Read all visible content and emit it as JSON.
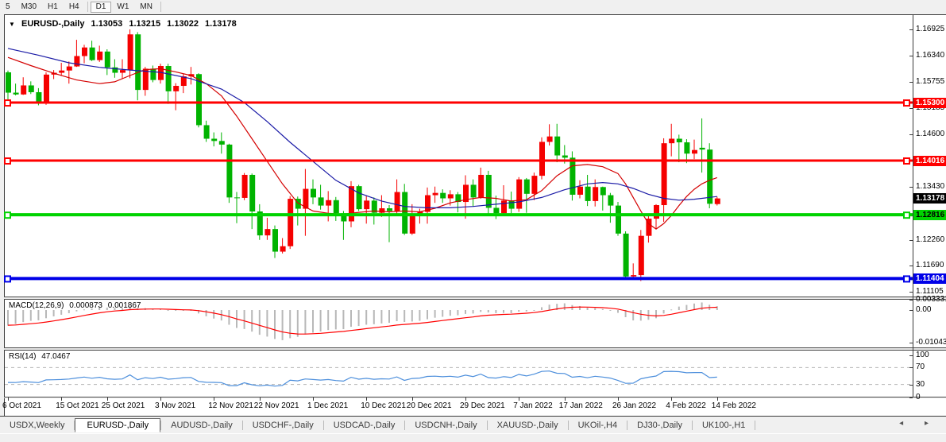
{
  "icons": {
    "collapse": "▼",
    "tab_scroll_left": "◂",
    "tab_scroll_right": "▸"
  },
  "toolbar": {
    "groups": [
      [
        "5",
        "M30",
        "H1",
        "H4"
      ],
      [
        "D1",
        "W1",
        "MN"
      ]
    ],
    "active": "D1"
  },
  "chart_header": {
    "symbol": "EURUSD-,Daily",
    "open": "1.13053",
    "high": "1.13215",
    "low": "1.13022",
    "close": "1.13178"
  },
  "chart_data": {
    "type": "candlestick",
    "symbol": "EURUSD-",
    "timeframe": "Daily",
    "visible_range": {
      "from": "6 Oct 2021",
      "to": "14 Feb 2022"
    },
    "y_axis": {
      "min": 1.11105,
      "max": 1.16925,
      "tick_labels": [
        "1.16925",
        "1.16340",
        "1.15755",
        "1.15185",
        "1.14600",
        "1.13430",
        "1.12260",
        "1.11690",
        "1.11105"
      ],
      "tick_values": [
        1.16925,
        1.1634,
        1.15755,
        1.15185,
        1.146,
        1.1343,
        1.1226,
        1.1169,
        1.11105
      ]
    },
    "x_axis": [
      {
        "i": 0,
        "label": "6 Oct 2021"
      },
      {
        "i": 7,
        "label": "15 Oct 2021"
      },
      {
        "i": 13,
        "label": "25 Oct 2021"
      },
      {
        "i": 20,
        "label": "3 Nov 2021"
      },
      {
        "i": 27,
        "label": "12 Nov 2021"
      },
      {
        "i": 33,
        "label": "22 Nov 2021"
      },
      {
        "i": 40,
        "label": "1 Dec 2021"
      },
      {
        "i": 47,
        "label": "10 Dec 2021"
      },
      {
        "i": 53,
        "label": "20 Dec 2021"
      },
      {
        "i": 60,
        "label": "29 Dec 2021"
      },
      {
        "i": 67,
        "label": "7 Jan 2022"
      },
      {
        "i": 73,
        "label": "17 Jan 2022"
      },
      {
        "i": 80,
        "label": "26 Jan 2022"
      },
      {
        "i": 87,
        "label": "4 Feb 2022"
      },
      {
        "i": 93,
        "label": "14 Feb 2022"
      }
    ],
    "candles": [
      [
        1.1597,
        1.1601,
        1.1529,
        1.1552
      ],
      [
        1.1552,
        1.1572,
        1.1546,
        1.1548
      ],
      [
        1.1548,
        1.1586,
        1.1547,
        1.1568
      ],
      [
        1.1568,
        1.1577,
        1.1549,
        1.1553
      ],
      [
        1.1553,
        1.1562,
        1.1524,
        1.153
      ],
      [
        1.153,
        1.1597,
        1.1525,
        1.1592
      ],
      [
        1.1592,
        1.1602,
        1.1582,
        1.1596
      ],
      [
        1.1596,
        1.1618,
        1.1589,
        1.1601
      ],
      [
        1.1601,
        1.1621,
        1.1572,
        1.161
      ],
      [
        1.161,
        1.1669,
        1.1609,
        1.1633
      ],
      [
        1.1633,
        1.1658,
        1.1617,
        1.1652
      ],
      [
        1.1652,
        1.1667,
        1.1622,
        1.1624
      ],
      [
        1.1624,
        1.1656,
        1.162,
        1.1643
      ],
      [
        1.1643,
        1.1648,
        1.1591,
        1.1608
      ],
      [
        1.1608,
        1.1626,
        1.1585,
        1.1596
      ],
      [
        1.1596,
        1.1626,
        1.1583,
        1.1602
      ],
      [
        1.1602,
        1.1692,
        1.1584,
        1.1681
      ],
      [
        1.1681,
        1.1686,
        1.1535,
        1.1558
      ],
      [
        1.1558,
        1.1609,
        1.1545,
        1.1605
      ],
      [
        1.1605,
        1.1612,
        1.1575,
        1.158
      ],
      [
        1.158,
        1.1616,
        1.1572,
        1.1611
      ],
      [
        1.1611,
        1.1616,
        1.1527,
        1.1555
      ],
      [
        1.1555,
        1.1573,
        1.1513,
        1.1567
      ],
      [
        1.1567,
        1.1594,
        1.1551,
        1.1588
      ],
      [
        1.1588,
        1.1609,
        1.157,
        1.1593
      ],
      [
        1.1593,
        1.1595,
        1.1475,
        1.148
      ],
      [
        1.148,
        1.149,
        1.1443,
        1.145
      ],
      [
        1.145,
        1.1464,
        1.1433,
        1.1445
      ],
      [
        1.1445,
        1.1464,
        1.1417,
        1.1437
      ],
      [
        1.1437,
        1.1439,
        1.1308,
        1.132
      ],
      [
        1.132,
        1.1332,
        1.1263,
        1.1319
      ],
      [
        1.1319,
        1.1374,
        1.1314,
        1.137
      ],
      [
        1.137,
        1.1373,
        1.125,
        1.1289
      ],
      [
        1.1289,
        1.1305,
        1.1226,
        1.1236
      ],
      [
        1.1236,
        1.1275,
        1.1226,
        1.125
      ],
      [
        1.125,
        1.1258,
        1.1186,
        1.12
      ],
      [
        1.12,
        1.123,
        1.1196,
        1.1212
      ],
      [
        1.1212,
        1.1323,
        1.1206,
        1.1317
      ],
      [
        1.1317,
        1.1322,
        1.1258,
        1.1295
      ],
      [
        1.1295,
        1.1383,
        1.1235,
        1.1339
      ],
      [
        1.1339,
        1.136,
        1.1305,
        1.132
      ],
      [
        1.132,
        1.1348,
        1.1293,
        1.1302
      ],
      [
        1.1302,
        1.1334,
        1.1267,
        1.1314
      ],
      [
        1.1314,
        1.1321,
        1.1268,
        1.1285
      ],
      [
        1.1285,
        1.129,
        1.1226,
        1.1267
      ],
      [
        1.1267,
        1.1356,
        1.1254,
        1.1345
      ],
      [
        1.1345,
        1.1348,
        1.129,
        1.1294
      ],
      [
        1.1294,
        1.1324,
        1.1262,
        1.1313
      ],
      [
        1.1313,
        1.132,
        1.126,
        1.1286
      ],
      [
        1.1286,
        1.1325,
        1.1277,
        1.1296
      ],
      [
        1.1296,
        1.1303,
        1.1221,
        1.129
      ],
      [
        1.129,
        1.136,
        1.128,
        1.1332
      ],
      [
        1.1332,
        1.135,
        1.1237,
        1.124
      ],
      [
        1.124,
        1.1305,
        1.1237,
        1.128
      ],
      [
        1.128,
        1.1295,
        1.1262,
        1.1288
      ],
      [
        1.1288,
        1.1342,
        1.1262,
        1.1325
      ],
      [
        1.1325,
        1.1344,
        1.1308,
        1.133
      ],
      [
        1.133,
        1.1338,
        1.1308,
        1.1318
      ],
      [
        1.1318,
        1.1336,
        1.1302,
        1.1327
      ],
      [
        1.1327,
        1.1332,
        1.1287,
        1.131
      ],
      [
        1.131,
        1.1369,
        1.1273,
        1.1348
      ],
      [
        1.1348,
        1.136,
        1.13,
        1.132
      ],
      [
        1.132,
        1.1386,
        1.1317,
        1.137
      ],
      [
        1.137,
        1.1379,
        1.1279,
        1.1297
      ],
      [
        1.1297,
        1.1324,
        1.1272,
        1.1285
      ],
      [
        1.1285,
        1.1347,
        1.128,
        1.1313
      ],
      [
        1.1313,
        1.1333,
        1.1285,
        1.1295
      ],
      [
        1.1295,
        1.1365,
        1.1288,
        1.136
      ],
      [
        1.136,
        1.1363,
        1.1286,
        1.1328
      ],
      [
        1.1328,
        1.1375,
        1.1314,
        1.1368
      ],
      [
        1.1368,
        1.1453,
        1.136,
        1.1443
      ],
      [
        1.1443,
        1.1482,
        1.1435,
        1.1455
      ],
      [
        1.1455,
        1.1483,
        1.1398,
        1.1413
      ],
      [
        1.1413,
        1.1436,
        1.1395,
        1.1408
      ],
      [
        1.1408,
        1.1422,
        1.1313,
        1.1326
      ],
      [
        1.1326,
        1.1358,
        1.1318,
        1.1344
      ],
      [
        1.1344,
        1.137,
        1.1301,
        1.1312
      ],
      [
        1.1312,
        1.136,
        1.13,
        1.1343
      ],
      [
        1.1343,
        1.1344,
        1.1291,
        1.1325
      ],
      [
        1.1325,
        1.133,
        1.1264,
        1.1302
      ],
      [
        1.1302,
        1.131,
        1.1235,
        1.124
      ],
      [
        1.124,
        1.1245,
        1.1142,
        1.1145
      ],
      [
        1.1145,
        1.1174,
        1.114,
        1.1148
      ],
      [
        1.1148,
        1.1248,
        1.1135,
        1.1235
      ],
      [
        1.1235,
        1.1279,
        1.122,
        1.1273
      ],
      [
        1.1273,
        1.1305,
        1.1251,
        1.1303
      ],
      [
        1.1303,
        1.1451,
        1.1266,
        1.144
      ],
      [
        1.144,
        1.1483,
        1.1411,
        1.145
      ],
      [
        1.145,
        1.1459,
        1.1398,
        1.1442
      ],
      [
        1.1442,
        1.1449,
        1.1396,
        1.1417
      ],
      [
        1.1417,
        1.1448,
        1.1405,
        1.1425
      ],
      [
        1.143,
        1.1495,
        1.1375,
        1.1426
      ],
      [
        1.1426,
        1.144,
        1.1296,
        1.1306
      ],
      [
        1.13053,
        1.13215,
        1.13022,
        1.13178
      ]
    ],
    "overlays": {
      "ma_slow_blue": [
        [
          0,
          1.165
        ],
        [
          4,
          1.1635
        ],
        [
          8,
          1.1618
        ],
        [
          12,
          1.1608
        ],
        [
          16,
          1.1602
        ],
        [
          20,
          1.1597
        ],
        [
          24,
          1.1583
        ],
        [
          28,
          1.156
        ],
        [
          31,
          1.153
        ],
        [
          34,
          1.1488
        ],
        [
          37,
          1.1442
        ],
        [
          40,
          1.14
        ],
        [
          43,
          1.1358
        ],
        [
          46,
          1.133
        ],
        [
          49,
          1.1312
        ],
        [
          52,
          1.13
        ],
        [
          55,
          1.1297
        ],
        [
          58,
          1.1297
        ],
        [
          61,
          1.13
        ],
        [
          64,
          1.1305
        ],
        [
          67,
          1.131
        ],
        [
          70,
          1.132
        ],
        [
          73,
          1.1337
        ],
        [
          76,
          1.135
        ],
        [
          78,
          1.1353
        ],
        [
          80,
          1.135
        ],
        [
          82,
          1.134
        ],
        [
          84,
          1.1327
        ],
        [
          86,
          1.1318
        ],
        [
          88,
          1.1314
        ],
        [
          90,
          1.1316
        ],
        [
          93,
          1.1322
        ]
      ],
      "ma_fast_red": [
        [
          0,
          1.163
        ],
        [
          3,
          1.1612
        ],
        [
          6,
          1.1595
        ],
        [
          9,
          1.158
        ],
        [
          12,
          1.1572
        ],
        [
          14,
          1.1576
        ],
        [
          16,
          1.159
        ],
        [
          18,
          1.1603
        ],
        [
          20,
          1.1605
        ],
        [
          22,
          1.1598
        ],
        [
          24,
          1.159
        ],
        [
          26,
          1.1572
        ],
        [
          28,
          1.1545
        ],
        [
          30,
          1.15
        ],
        [
          32,
          1.145
        ],
        [
          34,
          1.14
        ],
        [
          36,
          1.135
        ],
        [
          38,
          1.1308
        ],
        [
          40,
          1.129
        ],
        [
          42,
          1.1285
        ],
        [
          44,
          1.1283
        ],
        [
          46,
          1.1287
        ],
        [
          48,
          1.129
        ],
        [
          50,
          1.1288
        ],
        [
          52,
          1.129
        ],
        [
          54,
          1.1288
        ],
        [
          56,
          1.1296
        ],
        [
          58,
          1.1308
        ],
        [
          60,
          1.1315
        ],
        [
          62,
          1.132
        ],
        [
          64,
          1.1318
        ],
        [
          66,
          1.1312
        ],
        [
          68,
          1.1315
        ],
        [
          70,
          1.1335
        ],
        [
          72,
          1.1368
        ],
        [
          74,
          1.139
        ],
        [
          76,
          1.1393
        ],
        [
          78,
          1.1388
        ],
        [
          80,
          1.1373
        ],
        [
          81,
          1.135
        ],
        [
          82,
          1.132
        ],
        [
          83,
          1.129
        ],
        [
          84,
          1.1262
        ],
        [
          85,
          1.125
        ],
        [
          86,
          1.1262
        ],
        [
          87,
          1.128
        ],
        [
          88,
          1.1302
        ],
        [
          89,
          1.1322
        ],
        [
          90,
          1.1338
        ],
        [
          91,
          1.135
        ],
        [
          92,
          1.1358
        ],
        [
          93,
          1.1364
        ]
      ]
    },
    "levels": [
      {
        "label": "1.15300",
        "price": 1.153,
        "color": "#ff0000",
        "text": "#ffffff",
        "width": 3
      },
      {
        "label": "1.14016",
        "price": 1.14016,
        "color": "#ff0000",
        "text": "#ffffff",
        "width": 3
      },
      {
        "label": "1.12816",
        "price": 1.12816,
        "color": "#00d300",
        "text": "#000000",
        "width": 4
      },
      {
        "label": "1.11404",
        "price": 1.11404,
        "color": "#0000e8",
        "text": "#ffffff",
        "width": 4
      }
    ],
    "last_price": {
      "label": "1.13178",
      "price": 1.13178,
      "bg": "#000000",
      "text": "#ffffff"
    },
    "macd": {
      "title": "MACD(12,26,9)",
      "value_label": "0.000873",
      "signal_label": "0.001867",
      "axis_labels": [
        "0.003331",
        "0.00",
        "-0.01043"
      ],
      "axis_values": [
        0.003331,
        0,
        -0.01043
      ],
      "params": {
        "fast": 12,
        "slow": 26,
        "signal": 9
      }
    },
    "rsi": {
      "title": "RSI(14)",
      "value_label": "47.0467",
      "axis_labels": [
        "100",
        "70",
        "30",
        "0"
      ],
      "axis_values": [
        100,
        70,
        30,
        0
      ],
      "dashed_levels": [
        70,
        30
      ],
      "period": 14
    },
    "colors": {
      "up": "#f50000",
      "down": "#00b300",
      "ma_fast": "#d40000",
      "ma_slow": "#1a1aa6",
      "macd_bar": "#b8b8b8",
      "macd_signal": "#ff0000",
      "rsi_line": "#4d8fdc",
      "rsi_dash": "#b5b5b5"
    }
  },
  "tabs": {
    "items": [
      {
        "label": "USDX,Weekly",
        "active": false
      },
      {
        "label": "EURUSD-,Daily",
        "active": true
      },
      {
        "label": "AUDUSD-,Daily",
        "active": false
      },
      {
        "label": "USDCHF-,Daily",
        "active": false
      },
      {
        "label": "USDCAD-,Daily",
        "active": false
      },
      {
        "label": "USDCNH-,Daily",
        "active": false
      },
      {
        "label": "XAUUSD-,Daily",
        "active": false
      },
      {
        "label": "UKOil-,H4",
        "active": false
      },
      {
        "label": "DJ30-,Daily",
        "active": false
      },
      {
        "label": "UK100-,H1",
        "active": false
      }
    ]
  }
}
